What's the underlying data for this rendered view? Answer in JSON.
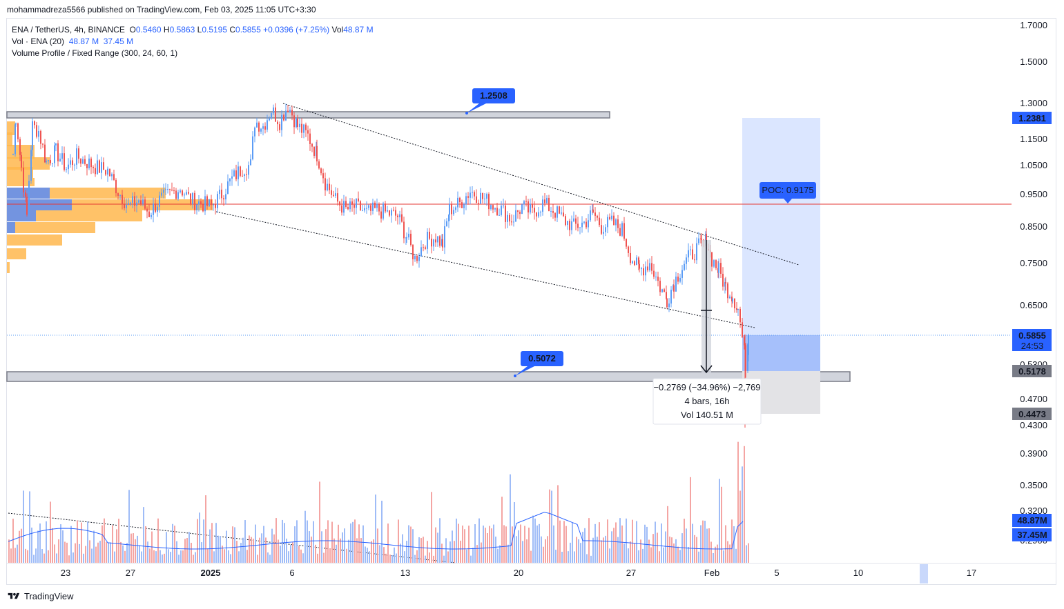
{
  "header": {
    "publisher_line": "mohammadreza5566 published on TradingView.com, Feb 03, 2025 11:05 UTC+3:30"
  },
  "legend": {
    "symbol": "ENA / TetherUS, 4h, BINANCE",
    "o_label": "O",
    "o_value": "0.5460",
    "h_label": "H",
    "h_value": "0.5863",
    "l_label": "L",
    "l_value": "0.5195",
    "c_label": "C",
    "c_value": "0.5855",
    "change": "+0.0396 (+7.25%)",
    "vol_label": "Vol",
    "vol_value": "48.87 M",
    "vol_indicator": "Vol · ENA (20)",
    "vol_now": "48.87 M",
    "vol_ma": "37.45 M",
    "volume_profile": "Volume Profile / Fixed Range (300, 24, 60, 1)"
  },
  "branding": {
    "name": "TradingView"
  },
  "colors": {
    "up": "#5b9cf6",
    "down": "#ef5350",
    "accent": "#2962ff",
    "poc_line": "#e53935",
    "profile_orange": "#ffb74d",
    "profile_blue": "#5b8cf6",
    "zone_blue": "#2962ff",
    "grey_zone": "#9598a1"
  },
  "chart_data": {
    "type": "candlestick",
    "title": "ENA / TetherUS, 4h, BINANCE",
    "y_axis": {
      "scale": "log",
      "ticks": [
        "1.7000",
        "1.5000",
        "1.3000",
        "1.1500",
        "1.0500",
        "0.9500",
        "0.8500",
        "0.7500",
        "0.6500",
        "0.5300",
        "0.4700",
        "0.4300",
        "0.3900",
        "0.3500",
        "0.3200",
        "0.2900"
      ],
      "ylim": [
        0.29,
        1.75
      ]
    },
    "x_axis": {
      "ticks": [
        "23",
        "27",
        "2025",
        "6",
        "13",
        "20",
        "27",
        "Feb",
        "5",
        "10",
        "17"
      ]
    },
    "price_badges": [
      {
        "value": "1.2381",
        "color": "#2962ff"
      },
      {
        "value": "0.5855",
        "sub": "24:53",
        "color": "#2962ff"
      },
      {
        "value": "0.5178",
        "color": "#787b86"
      },
      {
        "value": "0.4473",
        "color": "#787b86"
      }
    ],
    "volume_badges": [
      {
        "value": "48.87M",
        "color": "#2962ff"
      },
      {
        "value": "37.45M",
        "color": "#2962ff"
      }
    ],
    "annotations": {
      "top_level_label": "1.2508",
      "bottom_level_label": "0.5072",
      "poc_label": "POC: 0.9175",
      "poc_value": 0.9175,
      "resistance_zone": 1.2508,
      "support_zone": 0.5072,
      "measure_line1": "−0.2769 (−34.96%) −2,769",
      "measure_line2": "4 bars, 16h",
      "measure_line3": "Vol 140.51 M",
      "target_zone_top": 1.2381,
      "entry": 0.5855,
      "stop": 0.4473,
      "current_price": 0.5855
    },
    "price_path": [
      [
        18,
        1.09
      ],
      [
        22,
        1.24
      ],
      [
        30,
        1.04
      ],
      [
        38,
        0.88
      ],
      [
        46,
        1.2
      ],
      [
        55,
        1.18
      ],
      [
        66,
        1.06
      ],
      [
        80,
        1.1
      ],
      [
        95,
        1.04
      ],
      [
        110,
        1.08
      ],
      [
        125,
        1.06
      ],
      [
        140,
        1.04
      ],
      [
        155,
        1.03
      ],
      [
        170,
        0.96
      ],
      [
        185,
        0.91
      ],
      [
        200,
        0.93
      ],
      [
        215,
        0.89
      ],
      [
        230,
        0.93
      ],
      [
        245,
        0.95
      ],
      [
        260,
        0.97
      ],
      [
        275,
        0.93
      ],
      [
        290,
        0.92
      ],
      [
        305,
        0.91
      ],
      [
        320,
        0.95
      ],
      [
        335,
        1.0
      ],
      [
        350,
        1.04
      ],
      [
        362,
        1.05
      ],
      [
        368,
        1.22
      ],
      [
        380,
        1.2
      ],
      [
        392,
        1.27
      ],
      [
        404,
        1.22
      ],
      [
        416,
        1.29
      ],
      [
        430,
        1.2
      ],
      [
        445,
        1.16
      ],
      [
        458,
        1.09
      ],
      [
        470,
        0.99
      ],
      [
        485,
        0.93
      ],
      [
        500,
        0.9
      ],
      [
        515,
        0.91
      ],
      [
        530,
        0.89
      ],
      [
        545,
        0.9
      ],
      [
        560,
        0.89
      ],
      [
        575,
        0.88
      ],
      [
        588,
        0.82
      ],
      [
        600,
        0.76
      ],
      [
        615,
        0.81
      ],
      [
        630,
        0.82
      ],
      [
        640,
        0.8
      ],
      [
        650,
        0.9
      ],
      [
        665,
        0.92
      ],
      [
        680,
        0.96
      ],
      [
        695,
        0.94
      ],
      [
        710,
        0.92
      ],
      [
        725,
        0.9
      ],
      [
        740,
        0.87
      ],
      [
        755,
        0.91
      ],
      [
        770,
        0.89
      ],
      [
        785,
        0.92
      ],
      [
        800,
        0.9
      ],
      [
        815,
        0.87
      ],
      [
        830,
        0.85
      ],
      [
        845,
        0.86
      ],
      [
        858,
        0.89
      ],
      [
        870,
        0.85
      ],
      [
        885,
        0.86
      ],
      [
        900,
        0.84
      ],
      [
        912,
        0.77
      ],
      [
        925,
        0.73
      ],
      [
        940,
        0.75
      ],
      [
        955,
        0.69
      ],
      [
        965,
        0.66
      ],
      [
        975,
        0.7
      ],
      [
        990,
        0.75
      ],
      [
        1005,
        0.78
      ],
      [
        1015,
        0.8
      ],
      [
        1022,
        0.81
      ],
      [
        1030,
        0.76
      ],
      [
        1040,
        0.73
      ],
      [
        1050,
        0.69
      ],
      [
        1060,
        0.67
      ],
      [
        1068,
        0.64
      ],
      [
        1074,
        0.58
      ],
      [
        1079,
        0.53
      ],
      [
        1083,
        0.5855
      ]
    ]
  }
}
